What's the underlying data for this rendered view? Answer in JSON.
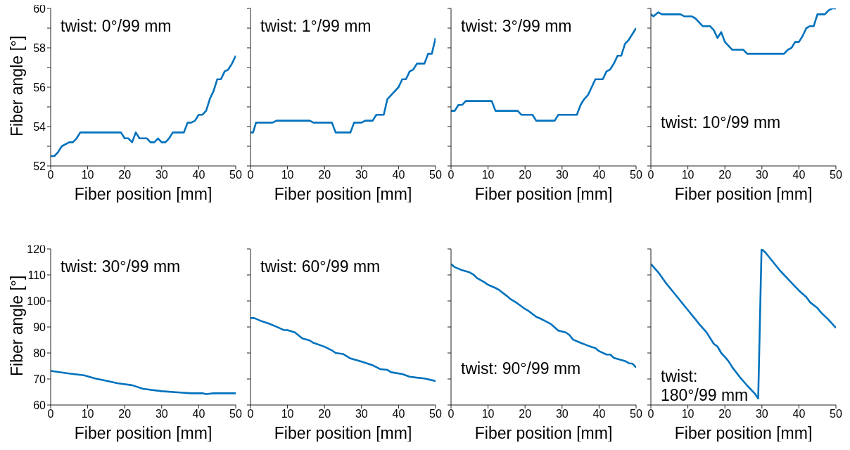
{
  "chart_data": [
    {
      "type": "line",
      "xlabel": "Fiber position [mm]",
      "ylabel": "Fiber angle [°]",
      "annotations": [
        "twist: 0°/99 mm"
      ],
      "xlim": [
        0,
        50
      ],
      "xticks": [
        0,
        10,
        20,
        30,
        40,
        50
      ],
      "ylim": [
        52,
        60
      ],
      "yticks": [
        52,
        {
          "value": 53,
          "label": null
        },
        54,
        {
          "value": 55,
          "label": null
        },
        56,
        {
          "value": 57,
          "label": null
        },
        58,
        {
          "value": 59,
          "label": null
        },
        60
      ],
      "marker": "none",
      "color": "#0072bd",
      "x": [
        0,
        1,
        2,
        3,
        5,
        6,
        7,
        8,
        19,
        20,
        21,
        22,
        23,
        24,
        26,
        27,
        28,
        29,
        30,
        31,
        32,
        33,
        36,
        37,
        38,
        39,
        40,
        41,
        42,
        43,
        44,
        45,
        46,
        47,
        48,
        49,
        50
      ],
      "values": [
        52.5,
        52.5,
        52.7,
        53.0,
        53.2,
        53.2,
        53.4,
        53.7,
        53.7,
        53.4,
        53.4,
        53.2,
        53.7,
        53.4,
        53.4,
        53.2,
        53.2,
        53.4,
        53.2,
        53.2,
        53.4,
        53.7,
        53.7,
        54.2,
        54.2,
        54.3,
        54.6,
        54.6,
        54.8,
        55.4,
        55.8,
        56.4,
        56.4,
        56.8,
        56.9,
        57.2,
        57.6
      ]
    },
    {
      "type": "line",
      "xlabel": "Fiber position [mm]",
      "annotations": [
        "twist: 1°/99 mm"
      ],
      "xlim": [
        0,
        50
      ],
      "xticks": [
        0,
        10,
        20,
        30,
        40,
        50
      ],
      "ylim": [
        52,
        60
      ],
      "yticks": [
        {
          "value": 52,
          "label": null
        },
        {
          "value": 53,
          "label": null
        },
        {
          "value": 54,
          "label": null
        },
        {
          "value": 55,
          "label": null
        },
        {
          "value": 56,
          "label": null
        },
        {
          "value": 57,
          "label": null
        },
        {
          "value": 58,
          "label": null
        },
        {
          "value": 59,
          "label": null
        },
        {
          "value": 60,
          "label": null
        }
      ],
      "tick_labels": "x",
      "marker": "none",
      "color": "#0072bd",
      "x": [
        0,
        0.7,
        1.5,
        6,
        7,
        16,
        17,
        22,
        23,
        27,
        28,
        30,
        31,
        33,
        34,
        36,
        37,
        40,
        41,
        42,
        43,
        44,
        45,
        47,
        48,
        49,
        50
      ],
      "values": [
        53.7,
        53.7,
        54.2,
        54.2,
        54.3,
        54.3,
        54.2,
        54.2,
        53.7,
        53.7,
        54.2,
        54.2,
        54.3,
        54.3,
        54.6,
        54.6,
        55.4,
        56.0,
        56.4,
        56.4,
        56.8,
        56.9,
        57.2,
        57.2,
        57.7,
        57.7,
        58.5
      ]
    },
    {
      "type": "line",
      "xlabel": "Fiber position [mm]",
      "annotations": [
        "twist: 3°/99 mm"
      ],
      "xlim": [
        0,
        50
      ],
      "xticks": [
        0,
        10,
        20,
        30,
        40,
        50
      ],
      "ylim": [
        52,
        60
      ],
      "yticks": [
        {
          "value": 52,
          "label": null
        },
        {
          "value": 53,
          "label": null
        },
        {
          "value": 54,
          "label": null
        },
        {
          "value": 55,
          "label": null
        },
        {
          "value": 56,
          "label": null
        },
        {
          "value": 57,
          "label": null
        },
        {
          "value": 58,
          "label": null
        },
        {
          "value": 59,
          "label": null
        },
        {
          "value": 60,
          "label": null
        }
      ],
      "tick_labels": "x",
      "marker": "none",
      "color": "#0072bd",
      "x": [
        0,
        1,
        2,
        3,
        4,
        11,
        12,
        18,
        19,
        22,
        23,
        28,
        29,
        34,
        35,
        36,
        37,
        39,
        41,
        42,
        43,
        44,
        45,
        46,
        47,
        48,
        50
      ],
      "values": [
        54.8,
        54.8,
        55.1,
        55.1,
        55.3,
        55.3,
        54.8,
        54.8,
        54.6,
        54.6,
        54.3,
        54.3,
        54.6,
        54.6,
        55.1,
        55.4,
        55.6,
        56.4,
        56.4,
        56.8,
        56.9,
        57.2,
        57.6,
        57.6,
        58.2,
        58.4,
        59.0
      ]
    },
    {
      "type": "line",
      "xlabel": "Fiber position [mm]",
      "annotations": [
        "twist: 10°/99 mm"
      ],
      "xlim": [
        0,
        50
      ],
      "xticks": [
        0,
        10,
        20,
        30,
        40,
        50
      ],
      "ylim": [
        52,
        60
      ],
      "yticks": [
        {
          "value": 52,
          "label": null
        },
        {
          "value": 53,
          "label": null
        },
        {
          "value": 54,
          "label": null
        },
        {
          "value": 55,
          "label": null
        },
        {
          "value": 56,
          "label": null
        },
        {
          "value": 57,
          "label": null
        },
        {
          "value": 58,
          "label": null
        },
        {
          "value": 59,
          "label": null
        },
        {
          "value": 60,
          "label": null
        }
      ],
      "tick_labels": "x",
      "marker": "none",
      "color": "#0072bd",
      "x": [
        0,
        0.7,
        2,
        3,
        8,
        9,
        11,
        12,
        14,
        16,
        17,
        18,
        19,
        20,
        22,
        25,
        26,
        36,
        37,
        38,
        39,
        40,
        41,
        42,
        43,
        44,
        45,
        47,
        48,
        49,
        50
      ],
      "values": [
        59.7,
        59.6,
        59.8,
        59.7,
        59.7,
        59.6,
        59.6,
        59.5,
        59.1,
        59.1,
        58.9,
        58.5,
        58.8,
        58.3,
        57.9,
        57.9,
        57.7,
        57.7,
        57.9,
        58.0,
        58.3,
        58.3,
        58.6,
        59.0,
        59.1,
        59.1,
        59.7,
        59.7,
        59.9,
        60,
        60
      ]
    },
    {
      "type": "line",
      "xlabel": "Fiber position [mm]",
      "ylabel": "Fiber angle [°]",
      "annotations": [
        "twist: 30°/99 mm"
      ],
      "xlim": [
        0,
        50
      ],
      "xticks": [
        0,
        10,
        20,
        30,
        40,
        50
      ],
      "ylim": [
        60,
        120
      ],
      "yticks": [
        60,
        70,
        80,
        90,
        100,
        110,
        120
      ],
      "marker": "none",
      "color": "#0072bd",
      "x": [
        0,
        5,
        9,
        12,
        15,
        18,
        22,
        25,
        30,
        35,
        38,
        41,
        42,
        44,
        50
      ],
      "values": [
        73.1,
        72.1,
        71.4,
        70.2,
        69.3,
        68.4,
        67.6,
        66.2,
        65.3,
        64.8,
        64.5,
        64.5,
        64.2,
        64.5,
        64.5
      ]
    },
    {
      "type": "line",
      "xlabel": "Fiber position [mm]",
      "annotations": [
        "twist: 60°/99 mm"
      ],
      "xlim": [
        0,
        50
      ],
      "xticks": [
        0,
        10,
        20,
        30,
        40,
        50
      ],
      "ylim": [
        60,
        120
      ],
      "yticks": [
        {
          "value": 60,
          "label": null
        },
        {
          "value": 70,
          "label": null
        },
        {
          "value": 80,
          "label": null
        },
        {
          "value": 90,
          "label": null
        },
        {
          "value": 100,
          "label": null
        },
        {
          "value": 110,
          "label": null
        },
        {
          "value": 120,
          "label": null
        }
      ],
      "tick_labels": "x",
      "marker": "none",
      "color": "#0072bd",
      "x": [
        0,
        1,
        3,
        5,
        7,
        9,
        10,
        12,
        14,
        16,
        17,
        20,
        22,
        23,
        25,
        27,
        30,
        33,
        35,
        37,
        38,
        41,
        43,
        45,
        47,
        50
      ],
      "values": [
        93.4,
        93.4,
        92.2,
        91.3,
        90.1,
        88.8,
        88.8,
        87.9,
        85.6,
        84.8,
        83.9,
        82.4,
        81.0,
        80.0,
        79.6,
        77.9,
        76.7,
        75.3,
        73.8,
        73.5,
        72.6,
        71.9,
        70.9,
        70.5,
        70.2,
        69.2
      ]
    },
    {
      "type": "line",
      "xlabel": "Fiber position [mm]",
      "annotations": [
        "twist: 90°/99 mm"
      ],
      "xlim": [
        0,
        50
      ],
      "xticks": [
        0,
        10,
        20,
        30,
        40,
        50
      ],
      "ylim": [
        60,
        120
      ],
      "yticks": [
        {
          "value": 60,
          "label": null
        },
        {
          "value": 70,
          "label": null
        },
        {
          "value": 80,
          "label": null
        },
        {
          "value": 90,
          "label": null
        },
        {
          "value": 100,
          "label": null
        },
        {
          "value": 110,
          "label": null
        },
        {
          "value": 120,
          "label": null
        }
      ],
      "tick_labels": "x",
      "marker": "none",
      "color": "#0072bd",
      "x": [
        0,
        1,
        3,
        5,
        6,
        7,
        9,
        10,
        12,
        13,
        15,
        16,
        18,
        20,
        21,
        23,
        24,
        25,
        27,
        29,
        31,
        32,
        33,
        35,
        37,
        38,
        39,
        40,
        42,
        43,
        44,
        47,
        48,
        49,
        50
      ],
      "values": [
        114.2,
        113.0,
        111.8,
        111.0,
        110.2,
        108.8,
        107.2,
        106.2,
        105.0,
        104.2,
        102.0,
        100.8,
        99.0,
        96.9,
        96.1,
        93.9,
        93.3,
        92.6,
        91.1,
        88.6,
        87.9,
        86.9,
        85.1,
        83.9,
        82.8,
        82.3,
        81.9,
        80.7,
        79.4,
        79.4,
        78.1,
        76.9,
        76.1,
        75.9,
        74.4
      ]
    },
    {
      "type": "line",
      "xlabel": "Fiber position [mm]",
      "annotations": [
        "twist: 180°/99 mm"
      ],
      "xlim": [
        0,
        50
      ],
      "xticks": [
        0,
        10,
        20,
        30,
        40,
        50
      ],
      "ylim": [
        60,
        120
      ],
      "yticks": [
        {
          "value": 60,
          "label": null
        },
        {
          "value": 70,
          "label": null
        },
        {
          "value": 80,
          "label": null
        },
        {
          "value": 90,
          "label": null
        },
        {
          "value": 100,
          "label": null
        },
        {
          "value": 110,
          "label": null
        },
        {
          "value": 120,
          "label": null
        }
      ],
      "tick_labels": "x",
      "marker": "none",
      "color": "#0072bd",
      "x": [
        0,
        2,
        4,
        6,
        8,
        10,
        12,
        13,
        15,
        17,
        18,
        19,
        20,
        21,
        22,
        24,
        26,
        28,
        29,
        29.9,
        31,
        33,
        35,
        36,
        38,
        40,
        42,
        43,
        45,
        46,
        48,
        50
      ],
      "values": [
        114.2,
        111.0,
        107.0,
        103.5,
        100.0,
        96.5,
        93.0,
        91.2,
        88.0,
        83.5,
        82.5,
        80.0,
        78.5,
        76.8,
        74.5,
        70.8,
        67.5,
        64.5,
        62.5,
        120,
        118.5,
        115.0,
        111.5,
        110.0,
        107.0,
        104.0,
        101.5,
        99.5,
        97.3,
        95.5,
        92.8,
        89.6
      ]
    }
  ]
}
